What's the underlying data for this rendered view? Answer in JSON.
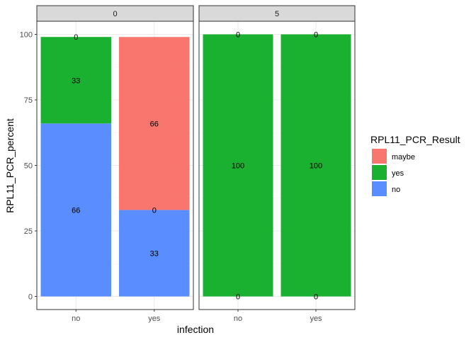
{
  "chart_data": {
    "type": "bar",
    "stacked": true,
    "facet_variable": "",
    "facets": [
      {
        "label": "0",
        "categories": [
          "no",
          "yes"
        ],
        "segments": [
          [
            {
              "series": "no",
              "value": 66,
              "label": "66"
            },
            {
              "series": "yes",
              "value": 33,
              "label": "33"
            },
            {
              "series": "maybe",
              "value": 0,
              "label": "0"
            }
          ],
          [
            {
              "series": "no",
              "value": 33,
              "label": "33"
            },
            {
              "series": "yes",
              "value": 0,
              "label": "0"
            },
            {
              "series": "maybe",
              "value": 66,
              "label": "66"
            }
          ]
        ]
      },
      {
        "label": "5",
        "categories": [
          "no",
          "yes"
        ],
        "segments": [
          [
            {
              "series": "no",
              "value": 0,
              "label": "0"
            },
            {
              "series": "yes",
              "value": 100,
              "label": "100"
            },
            {
              "series": "maybe",
              "value": 0,
              "label": "0"
            }
          ],
          [
            {
              "series": "no",
              "value": 0,
              "label": "0"
            },
            {
              "series": "yes",
              "value": 100,
              "label": "100"
            },
            {
              "series": "maybe",
              "value": 0,
              "label": "0"
            }
          ]
        ]
      }
    ],
    "xlabel": "infection",
    "ylabel": "RPL11_PCR_percent",
    "ylim": [
      -5,
      105
    ],
    "yticks": [
      0,
      25,
      50,
      75,
      100
    ],
    "grid": true,
    "legend": {
      "title": "RPL11_PCR_Result",
      "placement": "right",
      "entries": [
        {
          "name": "maybe",
          "color": "#F8766D"
        },
        {
          "name": "yes",
          "color": "#1AB131"
        },
        {
          "name": "no",
          "color": "#5A8DFF"
        }
      ]
    },
    "colors": {
      "maybe": "#F8766D",
      "yes": "#1AB131",
      "no": "#5A8DFF"
    }
  }
}
